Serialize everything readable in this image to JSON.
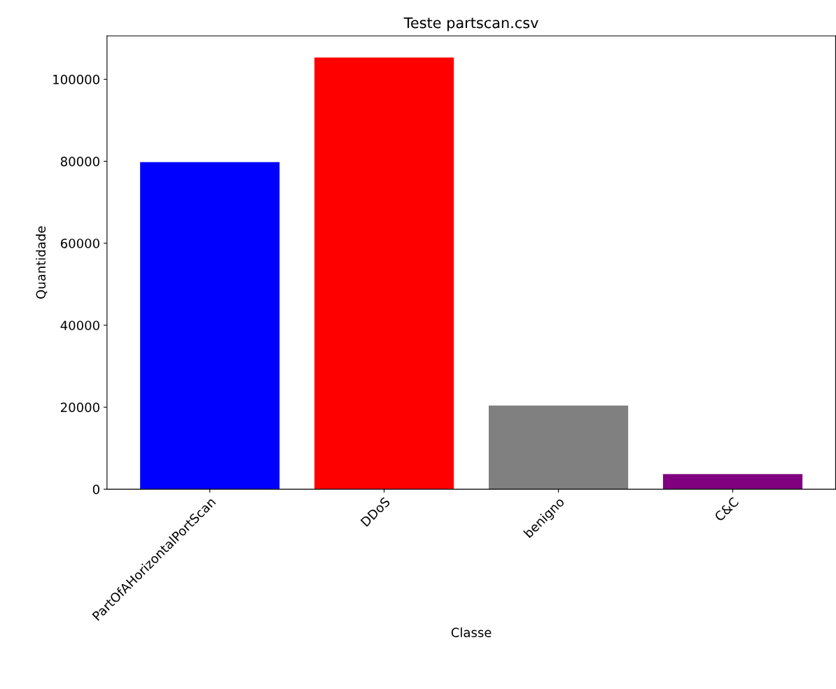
{
  "chart_data": {
    "type": "bar",
    "title": "Teste partscan.csv",
    "xlabel": "Classe",
    "ylabel": "Quantidade",
    "categories": [
      "PartOfAHorizontalPortScan",
      "DDoS",
      "benigno",
      "C&C"
    ],
    "values": [
      79800,
      105300,
      20400,
      3700
    ],
    "colors": [
      "#0000ff",
      "#ff0000",
      "#808080",
      "#800080"
    ],
    "ylim": [
      0,
      110600
    ],
    "yticks": [
      0,
      20000,
      40000,
      60000,
      80000,
      100000
    ],
    "grid": false
  }
}
